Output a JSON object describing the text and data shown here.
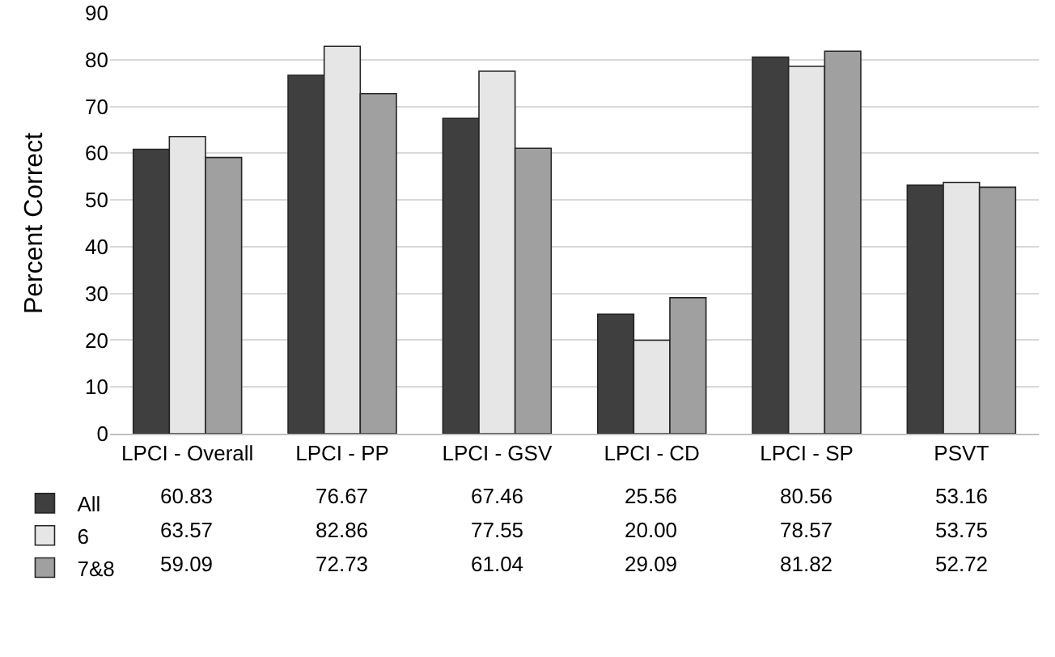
{
  "chart_data": {
    "type": "bar",
    "ylabel": "Percent Correct",
    "categories": [
      "LPCI - Overall",
      "LPCI - PP",
      "LPCI - GSV",
      "LPCI - CD",
      "LPCI - SP",
      "PSVT"
    ],
    "series": [
      {
        "name": "All",
        "color": "#3f3f3f",
        "values": [
          60.83,
          76.67,
          67.46,
          25.56,
          80.56,
          53.16
        ]
      },
      {
        "name": "6",
        "color": "#e6e6e6",
        "values": [
          63.57,
          82.86,
          77.55,
          20.0,
          78.57,
          53.75
        ]
      },
      {
        "name": "7&8",
        "color": "#a0a0a0",
        "values": [
          59.09,
          72.73,
          61.04,
          29.09,
          81.82,
          52.72
        ]
      }
    ],
    "value_labels": [
      [
        "60.83",
        "76.67",
        "67.46",
        "25.56",
        "80.56",
        "53.16"
      ],
      [
        "63.57",
        "82.86",
        "77.55",
        "20.00",
        "78.57",
        "53.75"
      ],
      [
        "59.09",
        "72.73",
        "61.04",
        "29.09",
        "81.82",
        "52.72"
      ]
    ],
    "ylim": [
      0,
      90
    ],
    "yticks": [
      0,
      10,
      20,
      30,
      40,
      50,
      60,
      70,
      80,
      90
    ],
    "grid": "y",
    "legend": "bottom left"
  }
}
